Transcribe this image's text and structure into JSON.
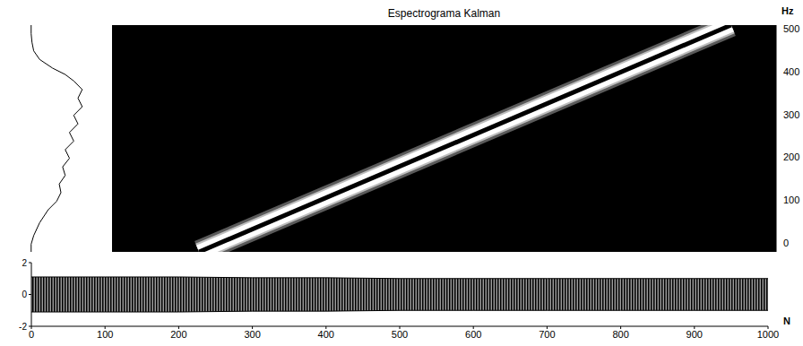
{
  "chart_data": [
    {
      "type": "spectrogram",
      "title": "Espectrograma Kalman",
      "y_label": "Hz",
      "xlim": [
        110,
        1010
      ],
      "ylim": [
        -20,
        508
      ],
      "yticks": [
        0,
        100,
        200,
        300,
        400,
        500
      ],
      "tick_labels": "y",
      "x": [
        228,
        949
      ],
      "values": [
        -20,
        508
      ]
    },
    {
      "type": "line",
      "tick_labels": false,
      "xlim": [
        -20,
        508
      ],
      "ylim": [
        0,
        1
      ],
      "x": [
        -20,
        0,
        20,
        40,
        60,
        80,
        95,
        110,
        130,
        150,
        170,
        190,
        210,
        230,
        250,
        270,
        290,
        310,
        330,
        350,
        370,
        390,
        410,
        440,
        470,
        490,
        508
      ],
      "values": [
        0.05,
        0.05,
        0.06,
        0.08,
        0.15,
        0.3,
        0.45,
        0.55,
        0.65,
        0.6,
        0.65,
        0.55,
        0.6,
        0.5,
        0.55,
        0.45,
        0.5,
        0.42,
        0.45,
        0.38,
        0.4,
        0.35,
        0.25,
        0.15,
        0.08,
        0.05,
        0.05
      ]
    },
    {
      "type": "area",
      "x_label": "N",
      "xlim": [
        0,
        1000
      ],
      "xticks": [
        0,
        100,
        200,
        300,
        400,
        500,
        600,
        700,
        800,
        900,
        1000
      ],
      "ylim": [
        -2,
        2
      ],
      "yticks": [
        -2,
        0,
        2
      ],
      "x": [
        0,
        100,
        200,
        300,
        400,
        500,
        600,
        700,
        800,
        900,
        1000
      ],
      "values": [
        [
          -1.1,
          1.1
        ],
        [
          -1.1,
          1.1
        ],
        [
          -1.1,
          1.1
        ],
        [
          -1.05,
          1.05
        ],
        [
          -1.05,
          1.05
        ],
        [
          -1,
          1
        ],
        [
          -1,
          1
        ],
        [
          -1,
          1
        ],
        [
          -1,
          1
        ],
        [
          -1,
          1
        ],
        [
          -1,
          1
        ]
      ]
    }
  ]
}
